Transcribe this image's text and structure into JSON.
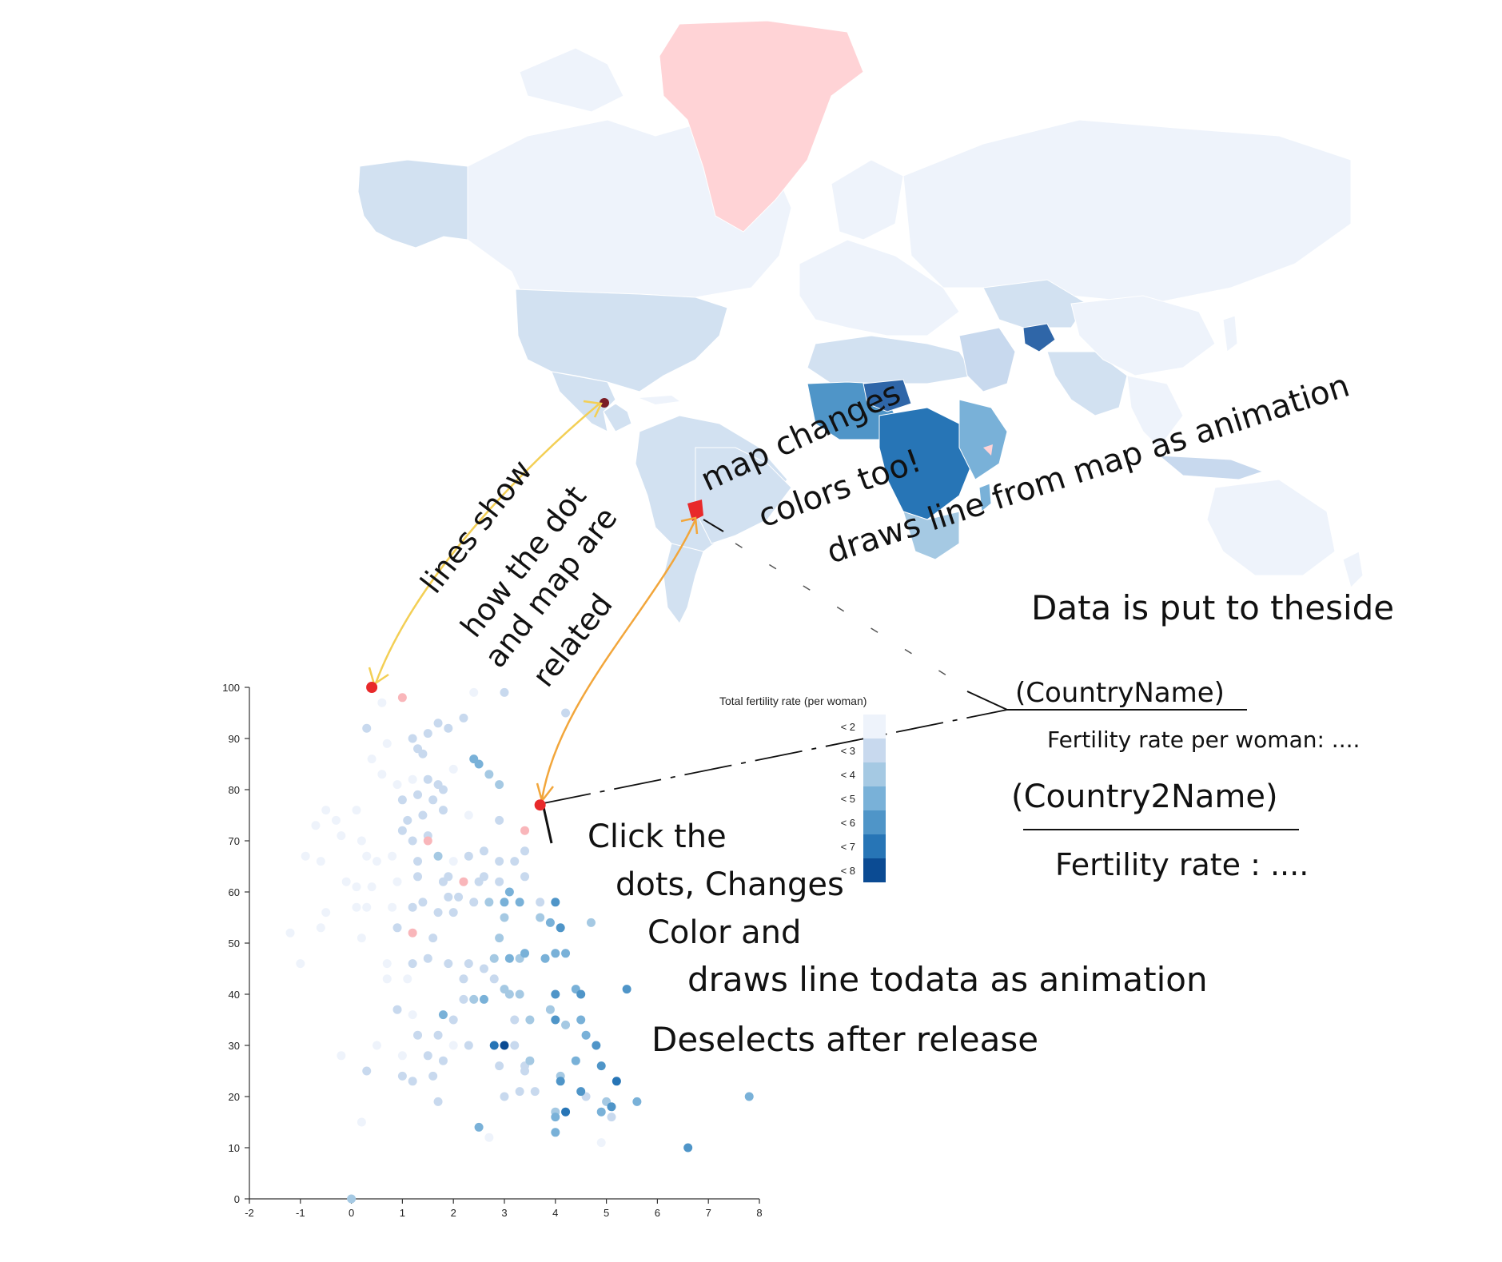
{
  "legend": {
    "title": "Total fertility rate (per woman)",
    "items": [
      "< 2",
      "< 3",
      "< 4",
      "< 5",
      "< 6",
      "< 7",
      "< 8"
    ],
    "colors": [
      "#eef3fb",
      "#c8d9ee",
      "#a5c9e3",
      "#79b1d8",
      "#4f95c8",
      "#2775b6",
      "#0b4b93"
    ]
  },
  "annotations": {
    "lines_1": "lines show",
    "lines_2": "how the dot",
    "lines_3": "and map are",
    "lines_4": "related",
    "map_1": "map changes",
    "map_2": "colors too!",
    "map_3": "draws line from map as animation",
    "side": "Data is put to theside",
    "country1": "(CountryName)",
    "country1_rate": "Fertility rate per woman: ....",
    "country2": "(Country2Name)",
    "country2_rate": "Fertility rate : ....",
    "click_1": "Click the",
    "click_2": "dots, Changes",
    "click_3": "Color and",
    "click_4": "draws line todata as animation",
    "click_5": "Deselects after release"
  },
  "colors": {
    "highlight": "#e8292a",
    "arrow_yellow": "#f3cf55",
    "arrow_orange": "#f2a63b",
    "greenland": "#ffd3d6",
    "map_light": "#eef3fb",
    "pink_dot": "#f9b6ba"
  },
  "chart_data": {
    "type": "scatter",
    "title": "",
    "xlabel": "",
    "ylabel": "",
    "xlim": [
      -2,
      8
    ],
    "ylim": [
      0,
      100
    ],
    "x_ticks": [
      -2,
      -1,
      0,
      1,
      2,
      3,
      4,
      5,
      6,
      7,
      8
    ],
    "y_ticks": [
      0,
      10,
      20,
      30,
      40,
      50,
      60,
      70,
      80,
      90,
      100
    ],
    "points": [
      [
        0.4,
        100,
        "h"
      ],
      [
        0.6,
        97,
        0
      ],
      [
        1.0,
        98,
        "p"
      ],
      [
        2.4,
        99,
        0
      ],
      [
        3.0,
        99,
        1
      ],
      [
        4.2,
        95,
        1
      ],
      [
        0.3,
        92,
        1
      ],
      [
        0.7,
        89,
        0
      ],
      [
        1.2,
        90,
        1
      ],
      [
        1.5,
        91,
        1
      ],
      [
        1.7,
        93,
        1
      ],
      [
        1.9,
        92,
        1
      ],
      [
        2.2,
        94,
        1
      ],
      [
        0.4,
        86,
        0
      ],
      [
        0.6,
        83,
        0
      ],
      [
        1.3,
        88,
        1
      ],
      [
        1.4,
        87,
        1
      ],
      [
        2.0,
        84,
        0
      ],
      [
        2.4,
        86,
        3
      ],
      [
        2.5,
        85,
        3
      ],
      [
        0.9,
        81,
        0
      ],
      [
        1.2,
        82,
        0
      ],
      [
        1.5,
        82,
        1
      ],
      [
        1.7,
        81,
        1
      ],
      [
        2.7,
        83,
        2
      ],
      [
        2.9,
        81,
        2
      ],
      [
        -0.5,
        76,
        0
      ],
      [
        -0.3,
        74,
        0
      ],
      [
        0.1,
        76,
        0
      ],
      [
        1.0,
        78,
        1
      ],
      [
        1.3,
        79,
        1
      ],
      [
        1.6,
        78,
        1
      ],
      [
        1.8,
        80,
        1
      ],
      [
        1.1,
        74,
        1
      ],
      [
        1.4,
        75,
        1
      ],
      [
        1.8,
        76,
        1
      ],
      [
        2.3,
        75,
        0
      ],
      [
        2.9,
        74,
        1
      ],
      [
        3.7,
        77,
        "h"
      ],
      [
        3.4,
        72,
        "p"
      ],
      [
        -0.7,
        73,
        0
      ],
      [
        -0.2,
        71,
        0
      ],
      [
        0.2,
        70,
        0
      ],
      [
        1.0,
        72,
        1
      ],
      [
        1.2,
        70,
        1
      ],
      [
        1.5,
        71,
        1
      ],
      [
        1.5,
        70,
        "p"
      ],
      [
        -0.9,
        67,
        0
      ],
      [
        -0.6,
        66,
        0
      ],
      [
        0.3,
        67,
        0
      ],
      [
        0.5,
        66,
        0
      ],
      [
        0.8,
        67,
        0
      ],
      [
        1.3,
        66,
        1
      ],
      [
        1.7,
        67,
        2
      ],
      [
        2.0,
        66,
        0
      ],
      [
        2.3,
        67,
        1
      ],
      [
        2.6,
        68,
        1
      ],
      [
        2.9,
        66,
        1
      ],
      [
        3.2,
        66,
        1
      ],
      [
        3.4,
        68,
        1
      ],
      [
        -0.1,
        62,
        0
      ],
      [
        0.1,
        61,
        0
      ],
      [
        0.4,
        61,
        0
      ],
      [
        0.9,
        62,
        0
      ],
      [
        1.3,
        63,
        1
      ],
      [
        1.8,
        62,
        1
      ],
      [
        1.9,
        63,
        1
      ],
      [
        2.2,
        62,
        "p"
      ],
      [
        2.5,
        62,
        1
      ],
      [
        2.6,
        63,
        1
      ],
      [
        2.9,
        62,
        1
      ],
      [
        3.4,
        63,
        1
      ],
      [
        1.4,
        58,
        1
      ],
      [
        1.9,
        59,
        1
      ],
      [
        2.1,
        59,
        1
      ],
      [
        2.4,
        58,
        1
      ],
      [
        2.7,
        58,
        2
      ],
      [
        3.0,
        58,
        3
      ],
      [
        3.1,
        60,
        3
      ],
      [
        3.3,
        58,
        3
      ],
      [
        3.7,
        58,
        1
      ],
      [
        4.0,
        58,
        4
      ],
      [
        -0.5,
        56,
        0
      ],
      [
        0.1,
        57,
        0
      ],
      [
        0.3,
        57,
        0
      ],
      [
        0.8,
        57,
        0
      ],
      [
        1.2,
        57,
        1
      ],
      [
        1.7,
        56,
        1
      ],
      [
        2.0,
        56,
        1
      ],
      [
        3.0,
        55,
        2
      ],
      [
        3.7,
        55,
        2
      ],
      [
        3.9,
        54,
        3
      ],
      [
        4.1,
        53,
        4
      ],
      [
        4.7,
        54,
        2
      ],
      [
        -1.2,
        52,
        0
      ],
      [
        -0.6,
        53,
        0
      ],
      [
        0.2,
        51,
        0
      ],
      [
        0.9,
        53,
        1
      ],
      [
        1.2,
        52,
        "p"
      ],
      [
        1.6,
        51,
        1
      ],
      [
        2.9,
        51,
        2
      ],
      [
        -1.0,
        46,
        0
      ],
      [
        0.7,
        46,
        0
      ],
      [
        1.2,
        46,
        1
      ],
      [
        1.5,
        47,
        1
      ],
      [
        1.9,
        46,
        1
      ],
      [
        2.3,
        46,
        1
      ],
      [
        2.6,
        45,
        1
      ],
      [
        2.8,
        47,
        2
      ],
      [
        3.1,
        47,
        3
      ],
      [
        3.3,
        47,
        2
      ],
      [
        3.4,
        48,
        3
      ],
      [
        3.8,
        47,
        3
      ],
      [
        4.0,
        48,
        3
      ],
      [
        4.2,
        48,
        3
      ],
      [
        0.7,
        43,
        0
      ],
      [
        1.1,
        43,
        0
      ],
      [
        2.2,
        43,
        1
      ],
      [
        2.8,
        43,
        1
      ],
      [
        3.0,
        41,
        2
      ],
      [
        3.1,
        40,
        2
      ],
      [
        3.3,
        40,
        2
      ],
      [
        4.0,
        40,
        4
      ],
      [
        4.4,
        41,
        3
      ],
      [
        4.5,
        40,
        4
      ],
      [
        5.4,
        41,
        4
      ],
      [
        2.2,
        39,
        1
      ],
      [
        2.4,
        39,
        2
      ],
      [
        2.6,
        39,
        3
      ],
      [
        0.9,
        37,
        1
      ],
      [
        1.2,
        36,
        0
      ],
      [
        1.8,
        36,
        3
      ],
      [
        2.0,
        35,
        1
      ],
      [
        3.2,
        35,
        1
      ],
      [
        3.5,
        35,
        2
      ],
      [
        3.9,
        37,
        2
      ],
      [
        4.0,
        35,
        4
      ],
      [
        4.2,
        34,
        2
      ],
      [
        4.5,
        35,
        3
      ],
      [
        4.6,
        32,
        3
      ],
      [
        4.8,
        30,
        4
      ],
      [
        1.3,
        32,
        1
      ],
      [
        1.7,
        32,
        1
      ],
      [
        2.0,
        30,
        0
      ],
      [
        0.5,
        30,
        0
      ],
      [
        2.3,
        30,
        1
      ],
      [
        2.8,
        30,
        5
      ],
      [
        3.0,
        30,
        6
      ],
      [
        3.2,
        30,
        1
      ],
      [
        -0.2,
        28,
        0
      ],
      [
        1.0,
        28,
        0
      ],
      [
        1.5,
        28,
        1
      ],
      [
        1.8,
        27,
        1
      ],
      [
        2.9,
        26,
        1
      ],
      [
        3.4,
        26,
        1
      ],
      [
        3.5,
        27,
        2
      ],
      [
        4.4,
        27,
        3
      ],
      [
        4.9,
        26,
        4
      ],
      [
        0.3,
        25,
        1
      ],
      [
        1.0,
        24,
        1
      ],
      [
        1.2,
        23,
        1
      ],
      [
        1.6,
        24,
        1
      ],
      [
        3.4,
        25,
        1
      ],
      [
        4.1,
        24,
        2
      ],
      [
        4.1,
        23,
        4
      ],
      [
        5.2,
        23,
        5
      ],
      [
        3.3,
        21,
        1
      ],
      [
        3.6,
        21,
        1
      ],
      [
        4.6,
        20,
        1
      ],
      [
        4.5,
        21,
        4
      ],
      [
        5.0,
        19,
        2
      ],
      [
        5.1,
        18,
        4
      ],
      [
        5.6,
        19,
        3
      ],
      [
        7.8,
        20,
        3
      ],
      [
        1.7,
        19,
        1
      ],
      [
        3.0,
        20,
        1
      ],
      [
        4.0,
        17,
        2
      ],
      [
        4.0,
        16,
        3
      ],
      [
        4.2,
        17,
        5
      ],
      [
        4.9,
        17,
        3
      ],
      [
        5.1,
        16,
        1
      ],
      [
        0.2,
        15,
        0
      ],
      [
        2.5,
        14,
        3
      ],
      [
        2.7,
        12,
        0
      ],
      [
        4.0,
        13,
        3
      ],
      [
        4.9,
        11,
        0
      ],
      [
        6.6,
        10,
        4
      ],
      [
        0.0,
        0,
        2
      ]
    ]
  }
}
